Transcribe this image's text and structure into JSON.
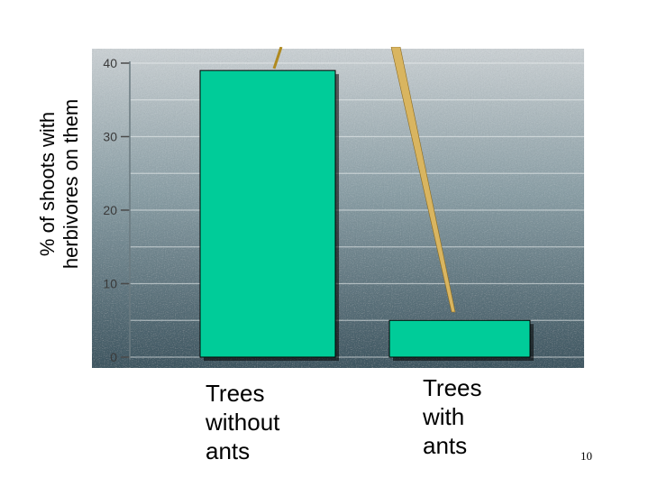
{
  "chart_data": {
    "type": "bar",
    "ylabel": "% of shoots with\nherbivores on them",
    "categories": [
      "Trees\nwithout\nants",
      "Trees\nwith\nants"
    ],
    "values": [
      39,
      5
    ],
    "ylim": [
      0,
      40
    ],
    "yticks": [
      "0",
      "10",
      "20",
      "30",
      "40"
    ],
    "grid": true,
    "bar_color": "#00cc99"
  },
  "page_number": "10"
}
